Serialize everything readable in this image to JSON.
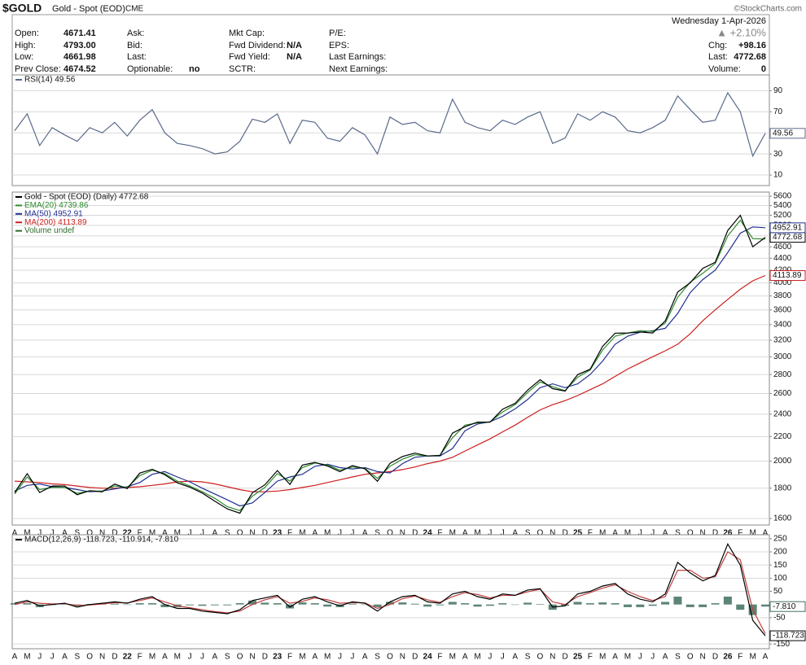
{
  "header": {
    "symbol": "$GOLD",
    "name": "Gold - Spot (EOD)",
    "exchange": "CME",
    "brand": "©StockCharts.com",
    "date": "Wednesday  1-Apr-2026"
  },
  "quote": [
    [
      {
        "label": "Open:",
        "value": "4671.41"
      },
      {
        "label": "High:",
        "value": "4793.00"
      },
      {
        "label": "Low:",
        "value": "4661.98"
      },
      {
        "label": "Prev Close:",
        "value": "4674.52"
      }
    ],
    [
      {
        "label": "Ask:"
      },
      {
        "label": "Bid:"
      },
      {
        "label": "Last:"
      },
      {
        "label": "Optionable:",
        "value": "no"
      }
    ],
    [
      {
        "label": "Mkt Cap:"
      },
      {
        "label": "Fwd Dividend:",
        "value": "N/A"
      },
      {
        "label": "Fwd Yield:",
        "value": "N/A"
      },
      {
        "label": "SCTR:"
      }
    ],
    [
      {
        "label": "P/E:"
      },
      {
        "label": "EPS:"
      },
      {
        "label": "Last Earnings:"
      },
      {
        "label": "Next Earnings:"
      }
    ]
  ],
  "summary": {
    "change_pct": "▲ +2.10%",
    "rows": [
      {
        "label": "Chg:",
        "value": "+98.16"
      },
      {
        "label": "Last:",
        "value": "4772.68"
      },
      {
        "label": "Volume:",
        "value": "0"
      }
    ]
  },
  "chart_data": [
    {
      "type": "line",
      "ylim": [
        0,
        105
      ],
      "yticks": [
        10,
        30,
        50,
        70,
        90
      ],
      "grid": true,
      "series": [
        {
          "name": "RSI(14) 49.56",
          "color": "#5a6a8a",
          "tag": true,
          "values": [
            52,
            68,
            38,
            55,
            48,
            42,
            55,
            50,
            60,
            47,
            62,
            72,
            50,
            40,
            38,
            35,
            30,
            32,
            42,
            63,
            60,
            68,
            40,
            62,
            60,
            45,
            42,
            55,
            48,
            30,
            65,
            58,
            60,
            52,
            50,
            82,
            60,
            55,
            52,
            62,
            58,
            65,
            70,
            40,
            45,
            68,
            62,
            70,
            65,
            52,
            50,
            55,
            62,
            85,
            72,
            60,
            62,
            88,
            70,
            28,
            49.56
          ]
        }
      ]
    },
    {
      "type": "line",
      "log_scale": true,
      "ylim": [
        1560,
        5690
      ],
      "yticks": [
        1600,
        1800,
        2000,
        2200,
        2400,
        2600,
        2800,
        3000,
        3200,
        3400,
        3600,
        3800,
        4000,
        4200,
        4400,
        4600,
        4800,
        5000,
        5200,
        5400,
        5600
      ],
      "grid": true,
      "categories": [
        "A",
        "M",
        "J",
        "J",
        "A",
        "S",
        "O",
        "N",
        "D",
        "22",
        "F",
        "M",
        "A",
        "M",
        "J",
        "J",
        "A",
        "S",
        "O",
        "N",
        "D",
        "23",
        "F",
        "M",
        "A",
        "M",
        "J",
        "J",
        "A",
        "S",
        "O",
        "N",
        "D",
        "24",
        "F",
        "M",
        "A",
        "M",
        "J",
        "J",
        "A",
        "S",
        "O",
        "N",
        "D",
        "25",
        "F",
        "M",
        "A",
        "M",
        "J",
        "J",
        "A",
        "S",
        "O",
        "N",
        "D",
        "26",
        "F",
        "M",
        "A"
      ],
      "series": [
        {
          "name": "Gold - Spot (EOD) (Daily) 4772.68",
          "color": "#000000",
          "tag": true,
          "values": [
            1770,
            1905,
            1770,
            1815,
            1815,
            1755,
            1783,
            1775,
            1829,
            1797,
            1909,
            1937,
            1897,
            1838,
            1807,
            1766,
            1711,
            1661,
            1633,
            1768,
            1824,
            1928,
            1827,
            1969,
            1990,
            1962,
            1919,
            1965,
            1940,
            1849,
            1983,
            2036,
            2063,
            2040,
            2044,
            2230,
            2286,
            2327,
            2326,
            2447,
            2503,
            2634,
            2744,
            2650,
            2625,
            2798,
            2858,
            3124,
            3288,
            3289,
            3303,
            3290,
            3448,
            3858,
            4000,
            4230,
            4330,
            4900,
            5200,
            4600,
            4772.68
          ]
        },
        {
          "name": "EMA(20) 4739.86",
          "color": "#2e8b2e",
          "values": [
            1760,
            1880,
            1790,
            1805,
            1805,
            1765,
            1780,
            1780,
            1815,
            1805,
            1890,
            1930,
            1905,
            1850,
            1815,
            1775,
            1730,
            1675,
            1650,
            1745,
            1805,
            1905,
            1850,
            1950,
            1985,
            1970,
            1930,
            1955,
            1945,
            1870,
            1960,
            2015,
            2050,
            2040,
            2045,
            2190,
            2300,
            2320,
            2330,
            2420,
            2490,
            2610,
            2720,
            2670,
            2630,
            2770,
            2850,
            3080,
            3250,
            3290,
            3320,
            3310,
            3420,
            3780,
            4010,
            4150,
            4310,
            4800,
            5100,
            4750,
            4739.86
          ]
        },
        {
          "name": "MA(50) 4952.91",
          "color": "#1f2f8f",
          "tag": true,
          "values": [
            1780,
            1820,
            1830,
            1810,
            1805,
            1790,
            1775,
            1780,
            1795,
            1810,
            1840,
            1900,
            1920,
            1880,
            1845,
            1800,
            1760,
            1720,
            1680,
            1700,
            1770,
            1850,
            1880,
            1900,
            1960,
            1975,
            1950,
            1940,
            1950,
            1920,
            1910,
            1980,
            2030,
            2040,
            2040,
            2100,
            2250,
            2310,
            2330,
            2380,
            2450,
            2540,
            2660,
            2700,
            2660,
            2700,
            2800,
            2950,
            3150,
            3250,
            3300,
            3320,
            3350,
            3550,
            3850,
            4050,
            4200,
            4500,
            4850,
            4970,
            4952.91
          ]
        },
        {
          "name": "MA(200) 4113.89",
          "color": "#cc1f1f",
          "tag": true,
          "values": [
            1850,
            1845,
            1840,
            1830,
            1825,
            1815,
            1805,
            1800,
            1800,
            1805,
            1810,
            1820,
            1830,
            1845,
            1850,
            1845,
            1830,
            1810,
            1790,
            1775,
            1775,
            1780,
            1790,
            1805,
            1820,
            1840,
            1860,
            1880,
            1900,
            1910,
            1920,
            1935,
            1955,
            1980,
            2000,
            2030,
            2080,
            2130,
            2180,
            2240,
            2300,
            2370,
            2440,
            2490,
            2530,
            2580,
            2640,
            2700,
            2780,
            2860,
            2930,
            3000,
            3070,
            3150,
            3280,
            3450,
            3600,
            3750,
            3900,
            4030,
            4113.89
          ]
        },
        {
          "name": "Volume undef",
          "color": "#2e6b2e"
        }
      ]
    },
    {
      "type": "line",
      "ylim": [
        -168,
        265
      ],
      "yticks": [
        250,
        200,
        150,
        100,
        50,
        -50,
        -150
      ],
      "grid": true,
      "categories": [
        "A",
        "M",
        "J",
        "J",
        "A",
        "S",
        "O",
        "N",
        "D",
        "22",
        "F",
        "M",
        "A",
        "M",
        "J",
        "J",
        "A",
        "S",
        "O",
        "N",
        "D",
        "23",
        "F",
        "M",
        "A",
        "M",
        "J",
        "J",
        "A",
        "S",
        "O",
        "N",
        "D",
        "24",
        "F",
        "M",
        "A",
        "M",
        "J",
        "J",
        "A",
        "S",
        "O",
        "N",
        "D",
        "25",
        "F",
        "M",
        "A",
        "M",
        "J",
        "J",
        "A",
        "S",
        "O",
        "N",
        "D",
        "26",
        "F",
        "M",
        "A"
      ],
      "series": [
        {
          "name": "MACD(12,26,9) -118.723, -110.914, -7.810",
          "color": "#000000",
          "tag": true,
          "values": [
            5,
            15,
            -5,
            0,
            5,
            -10,
            0,
            5,
            10,
            5,
            20,
            30,
            0,
            -15,
            -15,
            -25,
            -30,
            -35,
            -20,
            15,
            25,
            35,
            -10,
            20,
            30,
            10,
            -5,
            10,
            5,
            -25,
            10,
            30,
            35,
            10,
            5,
            40,
            50,
            30,
            20,
            40,
            35,
            55,
            60,
            -10,
            -5,
            40,
            50,
            70,
            80,
            40,
            20,
            10,
            40,
            160,
            120,
            90,
            110,
            230,
            150,
            -60,
            -118.723
          ]
        },
        {
          "color": "#c04040",
          "values": [
            0,
            10,
            5,
            2,
            3,
            -3,
            -2,
            2,
            7,
            6,
            15,
            25,
            10,
            -5,
            -12,
            -20,
            -27,
            -32,
            -25,
            0,
            18,
            30,
            5,
            12,
            25,
            18,
            5,
            7,
            6,
            -15,
            0,
            22,
            32,
            18,
            8,
            30,
            45,
            38,
            25,
            35,
            35,
            48,
            58,
            10,
            0,
            30,
            45,
            62,
            75,
            50,
            30,
            15,
            30,
            130,
            130,
            100,
            105,
            200,
            170,
            -20,
            -110.914
          ]
        },
        {
          "type": "bar",
          "color": "#3f6f5f",
          "tag": true,
          "values": [
            5,
            5,
            -10,
            -2,
            2,
            -7,
            2,
            3,
            3,
            -1,
            5,
            5,
            -10,
            -10,
            -3,
            -5,
            -3,
            -3,
            5,
            15,
            7,
            5,
            -15,
            8,
            5,
            -8,
            -10,
            3,
            -1,
            -10,
            10,
            8,
            3,
            -8,
            -3,
            10,
            5,
            -8,
            -5,
            5,
            0,
            7,
            2,
            -20,
            -5,
            10,
            5,
            8,
            5,
            -10,
            -10,
            -5,
            10,
            30,
            -10,
            -10,
            5,
            30,
            -20,
            -40,
            -7.81
          ],
          "value_labels": [
            null,
            null,
            null,
            null,
            null,
            null,
            null,
            null,
            null,
            null,
            null,
            null,
            null,
            null,
            null,
            null,
            null,
            null,
            null,
            null,
            null,
            null,
            null,
            null,
            null,
            null,
            null,
            null,
            null,
            null,
            null,
            null,
            null,
            null,
            null,
            null,
            null,
            null,
            null,
            null,
            null,
            null,
            null,
            null,
            null,
            null,
            null,
            null,
            null,
            null,
            null,
            null,
            null,
            null,
            null,
            null,
            null,
            null,
            null,
            null,
            "-7.810"
          ]
        }
      ]
    }
  ]
}
